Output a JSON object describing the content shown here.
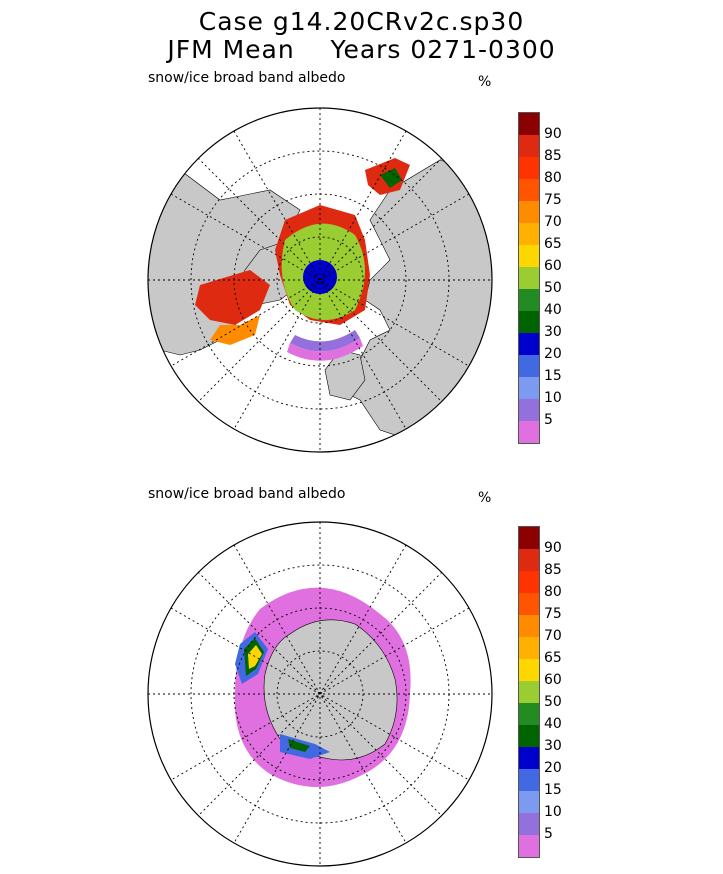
{
  "title": {
    "line1": "Case g14.20CRv2c.sp30",
    "line2": "JFM Mean    Years 0271-0300"
  },
  "panels": [
    {
      "hemisphere": "north",
      "variable": "snow/ice broad band albedo",
      "unit": "%"
    },
    {
      "hemisphere": "south",
      "variable": "snow/ice broad band albedo",
      "unit": "%"
    }
  ],
  "colorbar": {
    "ticks": [
      "5",
      "10",
      "15",
      "20",
      "30",
      "40",
      "50",
      "60",
      "65",
      "70",
      "75",
      "80",
      "85",
      "90"
    ],
    "colors": [
      "#e070e0",
      "#9370db",
      "#7b9af0",
      "#4169e1",
      "#0000cd",
      "#006400",
      "#228b22",
      "#9acd32",
      "#ffd700",
      "#ffb000",
      "#ff8c00",
      "#ff5500",
      "#ff3300",
      "#dd2a10",
      "#8b0000"
    ]
  },
  "map_colors": {
    "land": "#c8c8c8",
    "ocean": "#ffffff",
    "outline": "#000000"
  }
}
